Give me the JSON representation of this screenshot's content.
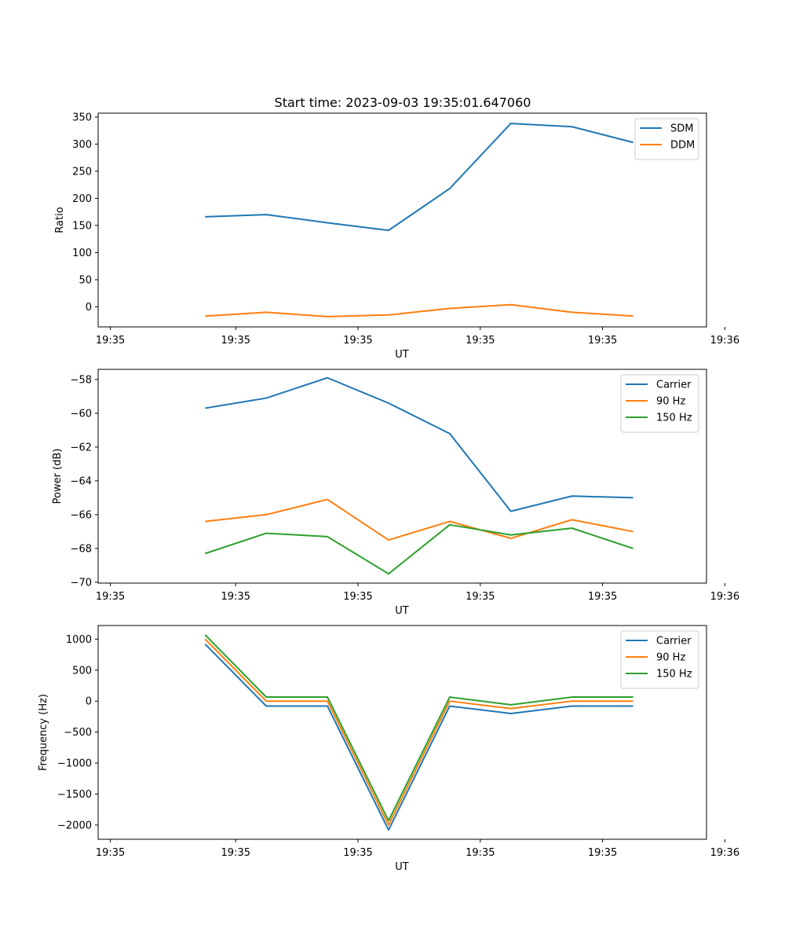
{
  "figure": {
    "title": "Start time: 2023-09-03 19:35:01.647060"
  },
  "chart_data": [
    {
      "type": "line",
      "title": "Start time: 2023-09-03 19:35:01.647060",
      "xlabel": "UT",
      "ylabel": "Ratio",
      "x": [
        1,
        2,
        3,
        4,
        5,
        6,
        7,
        8
      ],
      "xlim": [
        -0.75,
        9.2
      ],
      "x_ticks": [
        -0.5,
        1.5,
        3.5,
        5.5,
        7.5,
        9.5
      ],
      "x_ticks_fixed": [
        0,
        2,
        4,
        6,
        8,
        10
      ],
      "x_tick_labels": [
        "19:35",
        "19:35",
        "19:35",
        "19:35",
        "19:35",
        "19:36"
      ],
      "ylim": [
        -37,
        357
      ],
      "y_ticks": [
        0,
        50,
        100,
        150,
        200,
        250,
        300,
        350
      ],
      "y_tick_labels": [
        "0",
        "50",
        "100",
        "150",
        "200",
        "250",
        "300",
        "350"
      ],
      "legend_position": "top-right",
      "series": [
        {
          "name": "SDM",
          "color": "#1f77b4",
          "values": [
            166,
            170,
            155,
            141,
            218,
            338,
            332,
            303
          ]
        },
        {
          "name": "DDM",
          "color": "#ff7f0e",
          "values": [
            -17,
            -10,
            -18,
            -15,
            -3,
            4,
            -10,
            -17
          ]
        }
      ]
    },
    {
      "type": "line",
      "title": "",
      "xlabel": "UT",
      "ylabel": "Power (dB)",
      "x": [
        1,
        2,
        3,
        4,
        5,
        6,
        7,
        8
      ],
      "x_tick_labels": [
        "19:35",
        "19:35",
        "19:35",
        "19:35",
        "19:35",
        "19:36"
      ],
      "ylim": [
        -70.05,
        -57.4
      ],
      "y_ticks": [
        -70,
        -68,
        -66,
        -64,
        -62,
        -60,
        -58
      ],
      "y_tick_labels": [
        "−70",
        "−68",
        "−66",
        "−64",
        "−62",
        "−60",
        "−58"
      ],
      "legend_position": "top-right",
      "series": [
        {
          "name": "Carrier",
          "color": "#1f77b4",
          "values": [
            -59.7,
            -59.1,
            -57.9,
            -59.4,
            -61.2,
            -65.8,
            -64.9,
            -65.0
          ]
        },
        {
          "name": "90 Hz",
          "color": "#ff7f0e",
          "values": [
            -66.4,
            -66.0,
            -65.1,
            -67.5,
            -66.4,
            -67.4,
            -66.3,
            -67.0
          ]
        },
        {
          "name": "150 Hz",
          "color": "#2ca02c",
          "values": [
            -68.3,
            -67.1,
            -67.3,
            -69.5,
            -66.6,
            -67.2,
            -66.8,
            -68.0
          ]
        }
      ]
    },
    {
      "type": "line",
      "title": "",
      "xlabel": "UT",
      "ylabel": "Frequency (Hz)",
      "x": [
        1,
        2,
        3,
        4,
        5,
        6,
        7,
        8
      ],
      "x_tick_labels": [
        "19:35",
        "19:35",
        "19:35",
        "19:35",
        "19:35",
        "19:36"
      ],
      "ylim": [
        -2230,
        1220
      ],
      "y_ticks": [
        -2000,
        -1500,
        -1000,
        -500,
        0,
        500,
        1000
      ],
      "y_tick_labels": [
        "−2000",
        "−1500",
        "−1000",
        "−500",
        "0",
        "500",
        "1000"
      ],
      "legend_position": "top-right",
      "series": [
        {
          "name": "Carrier",
          "color": "#1f77b4",
          "values": [
            920,
            -80,
            -80,
            -2080,
            -80,
            -200,
            -80,
            -80
          ]
        },
        {
          "name": "90 Hz",
          "color": "#ff7f0e",
          "values": [
            1000,
            0,
            0,
            -2000,
            0,
            -120,
            0,
            0
          ]
        },
        {
          "name": "150 Hz",
          "color": "#2ca02c",
          "values": [
            1070,
            65,
            65,
            -1930,
            65,
            -60,
            65,
            65
          ]
        }
      ]
    }
  ]
}
